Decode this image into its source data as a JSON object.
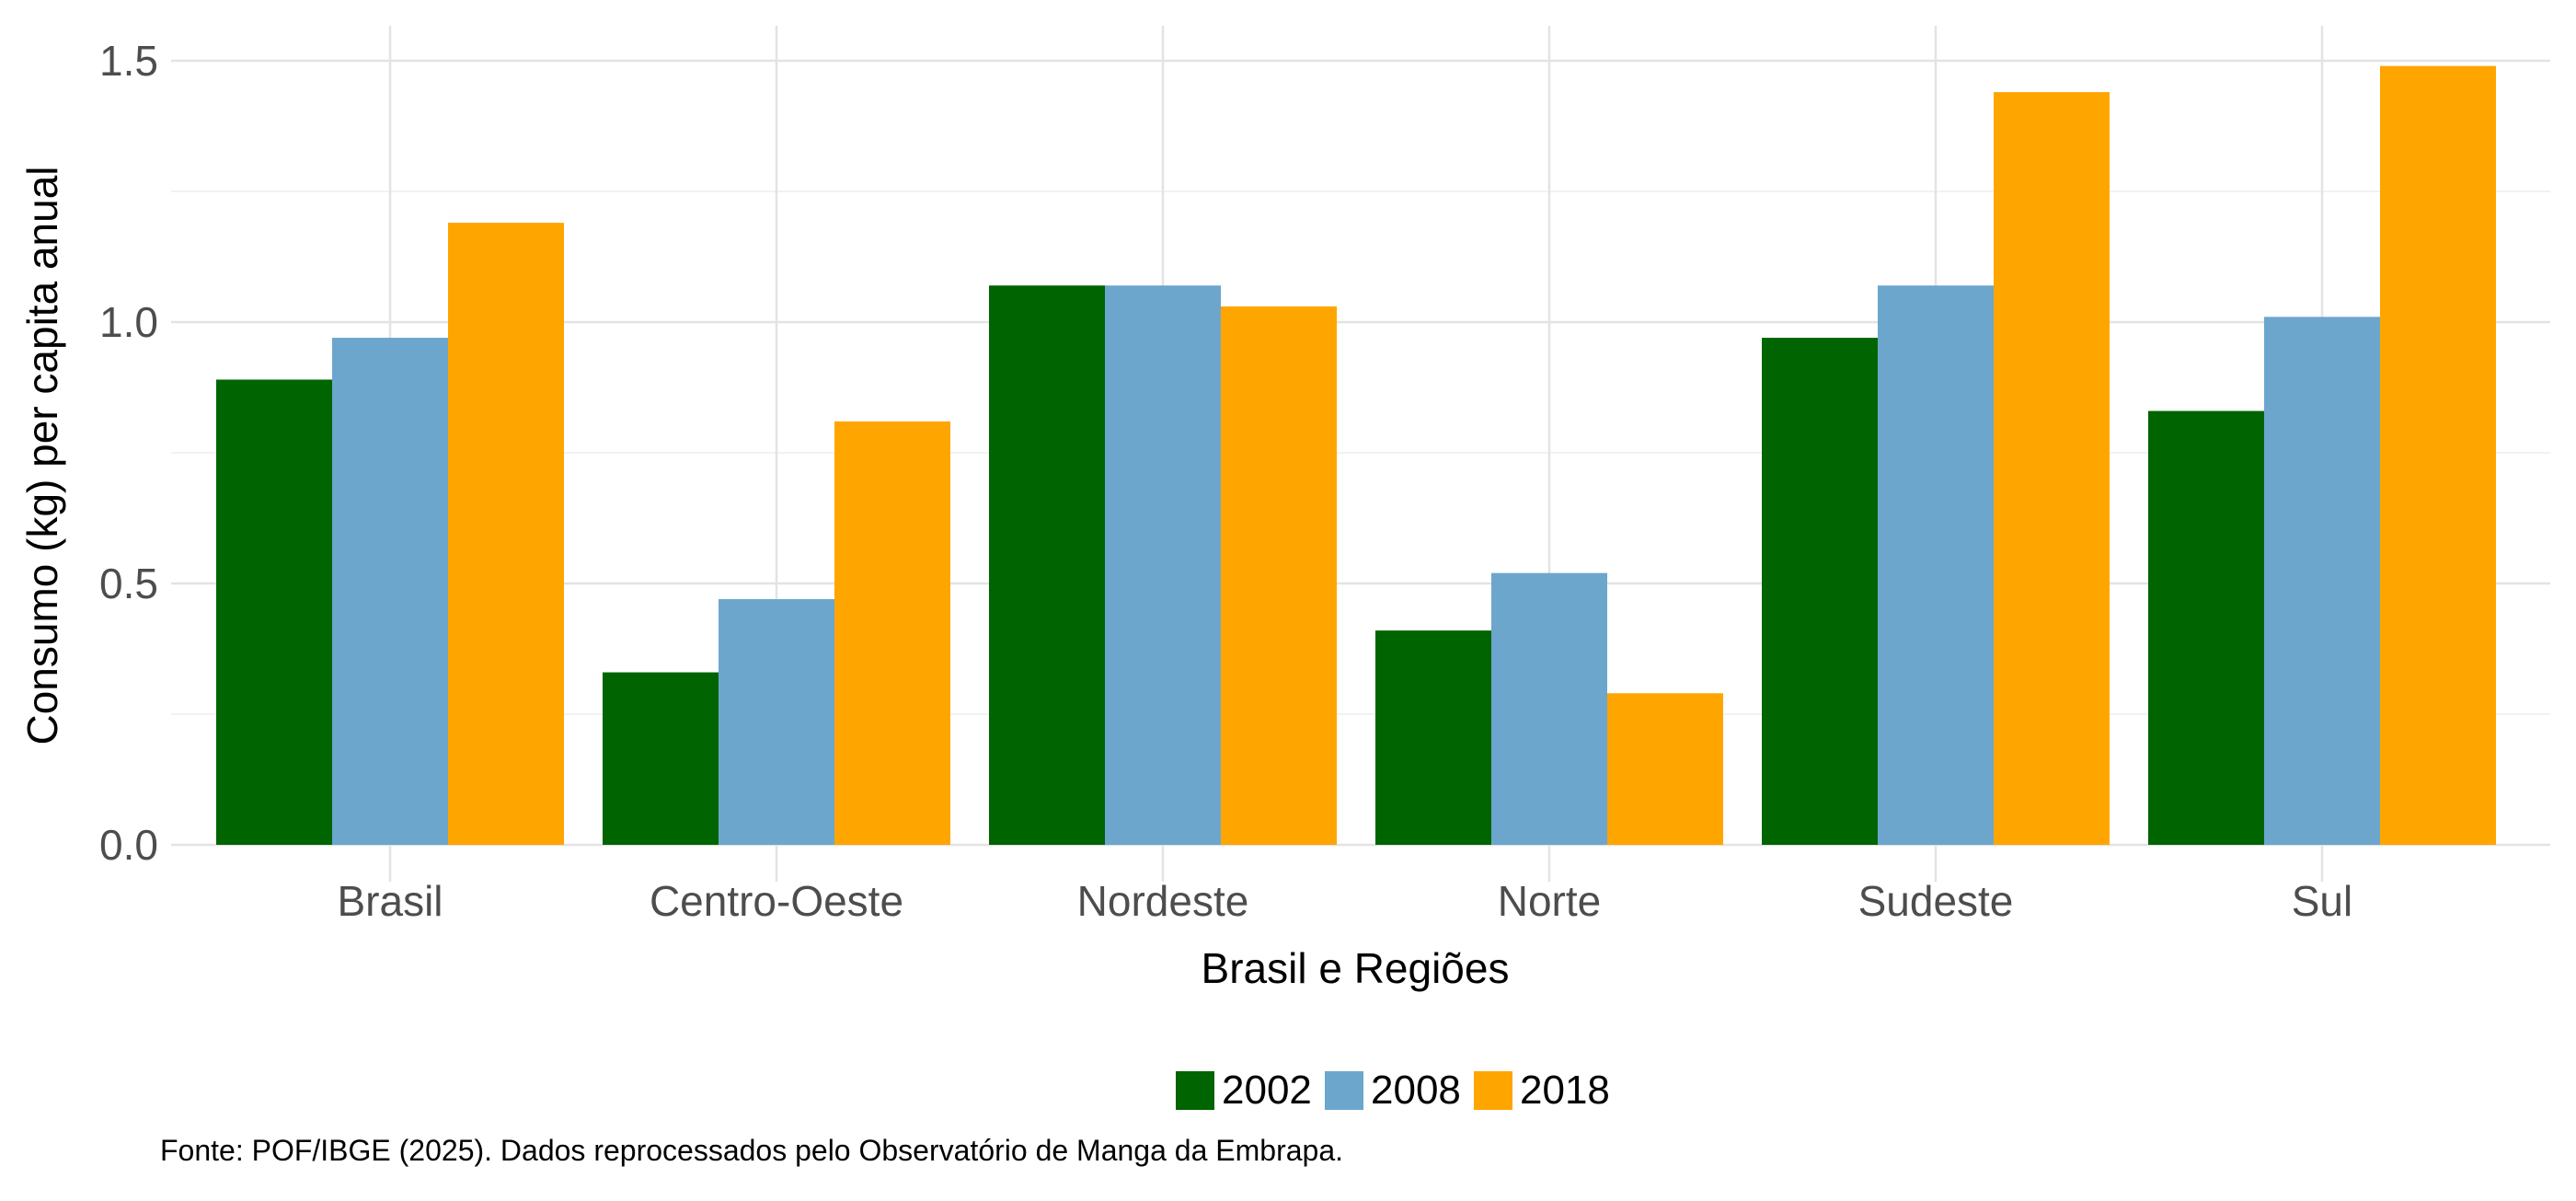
{
  "chart_data": {
    "type": "bar",
    "title": "",
    "xlabel": "Brasil e Regiões",
    "ylabel": "Consumo (kg) per capita anual",
    "categories": [
      "Brasil",
      "Centro-Oeste",
      "Nordeste",
      "Norte",
      "Sudeste",
      "Sul"
    ],
    "series": [
      {
        "name": "2002",
        "color": "#006400",
        "values": [
          0.89,
          0.33,
          1.07,
          0.41,
          0.97,
          0.83
        ]
      },
      {
        "name": "2008",
        "color": "#6CA6CD",
        "values": [
          0.97,
          0.47,
          1.07,
          0.52,
          1.07,
          1.01
        ]
      },
      {
        "name": "2018",
        "color": "#FFA500",
        "values": [
          1.19,
          0.81,
          1.03,
          0.29,
          1.44,
          1.49
        ]
      }
    ],
    "ylim": [
      0,
      1.5
    ],
    "yticks": [
      "0.0",
      "0.5",
      "1.0",
      "1.5"
    ],
    "grid": true,
    "legend_position": "bottom",
    "caption": "Fonte: POF/IBGE (2025). Dados reprocessados pelo Observatório de Manga da Embrapa."
  }
}
